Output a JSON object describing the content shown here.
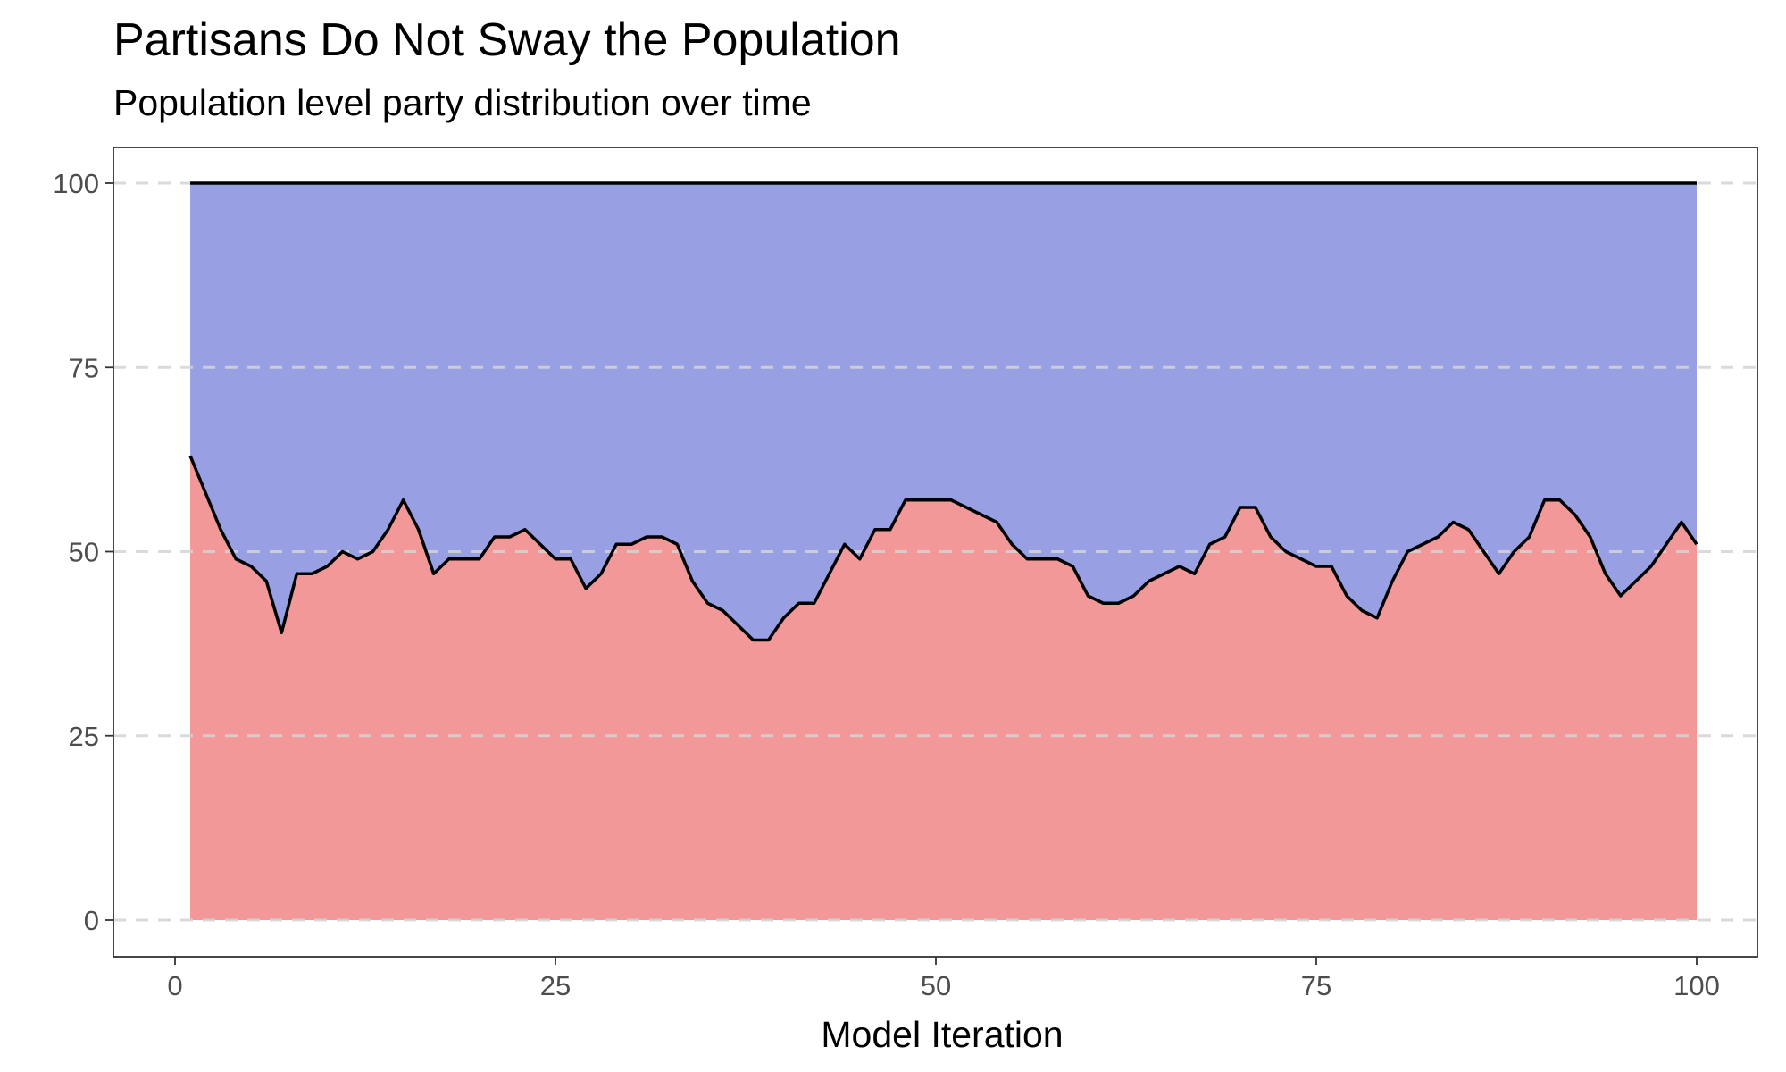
{
  "chart_data": {
    "type": "area",
    "title": "Partisans Do Not Sway the Population",
    "subtitle": "Population level party distribution over time",
    "xlabel": "Model Iteration",
    "ylabel": "",
    "xlim": [
      0,
      100
    ],
    "ylim": [
      0,
      100
    ],
    "x_ticks": [
      0,
      25,
      50,
      75,
      100
    ],
    "y_ticks": [
      0,
      25,
      50,
      75,
      100
    ],
    "grid": "horizontal dashed",
    "legend": "none",
    "stacked": true,
    "x": [
      1,
      2,
      3,
      4,
      5,
      6,
      7,
      8,
      9,
      10,
      11,
      12,
      13,
      14,
      15,
      16,
      17,
      18,
      19,
      20,
      21,
      22,
      23,
      24,
      25,
      26,
      27,
      28,
      29,
      30,
      31,
      32,
      33,
      34,
      35,
      36,
      37,
      38,
      39,
      40,
      41,
      42,
      43,
      44,
      45,
      46,
      47,
      48,
      49,
      50,
      51,
      52,
      53,
      54,
      55,
      56,
      57,
      58,
      59,
      60,
      61,
      62,
      63,
      64,
      65,
      66,
      67,
      68,
      69,
      70,
      71,
      72,
      73,
      74,
      75,
      76,
      77,
      78,
      79,
      80,
      81,
      82,
      83,
      84,
      85,
      86,
      87,
      88,
      89,
      90,
      91,
      92,
      93,
      94,
      95,
      96,
      97,
      98,
      99,
      100
    ],
    "series": [
      {
        "color": "#f29898",
        "values": [
          63,
          58,
          53,
          49,
          48,
          46,
          39,
          47,
          47,
          48,
          50,
          49,
          50,
          53,
          57,
          53,
          47,
          49,
          49,
          49,
          52,
          52,
          53,
          51,
          49,
          49,
          45,
          47,
          51,
          51,
          52,
          52,
          51,
          46,
          43,
          42,
          40,
          38,
          38,
          41,
          43,
          43,
          47,
          51,
          49,
          53,
          53,
          57,
          57,
          57,
          57,
          56,
          55,
          54,
          51,
          49,
          49,
          49,
          48,
          44,
          43,
          43,
          44,
          46,
          47,
          48,
          47,
          51,
          52,
          56,
          56,
          52,
          50,
          49,
          48,
          48,
          44,
          42,
          41,
          46,
          50,
          51,
          52,
          54,
          53,
          50,
          47,
          50,
          52,
          57,
          57,
          55,
          52,
          47,
          44,
          46,
          48,
          51,
          54,
          51
        ]
      },
      {
        "color": "#98a0e3",
        "values": [
          37,
          42,
          47,
          51,
          52,
          54,
          61,
          53,
          53,
          52,
          50,
          51,
          50,
          47,
          43,
          47,
          53,
          51,
          51,
          51,
          48,
          48,
          47,
          49,
          51,
          51,
          55,
          53,
          49,
          49,
          48,
          48,
          49,
          54,
          57,
          58,
          60,
          62,
          62,
          59,
          57,
          57,
          53,
          49,
          51,
          47,
          47,
          43,
          43,
          43,
          43,
          44,
          45,
          46,
          49,
          51,
          51,
          51,
          52,
          56,
          57,
          57,
          56,
          54,
          53,
          52,
          53,
          49,
          48,
          44,
          44,
          48,
          50,
          51,
          52,
          52,
          56,
          58,
          59,
          54,
          50,
          49,
          48,
          46,
          47,
          50,
          53,
          50,
          48,
          43,
          43,
          45,
          48,
          53,
          56,
          54,
          52,
          49,
          46,
          49
        ]
      }
    ],
    "total": 100,
    "line_color": "#000000",
    "grid_color": "#d3d3d3"
  }
}
